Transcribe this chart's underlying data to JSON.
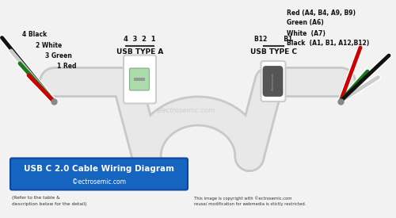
{
  "bg_color": "#f2f2f2",
  "title_box_color": "#1565C0",
  "title_text": "USB C 2.0 Cable Wiring Diagram",
  "subtitle_text": "©ectrosemic.com",
  "title_text_color": "#ffffff",
  "watermark": "electrosemic.com",
  "left_label": "USB TYPE A",
  "right_label": "USB TYPE C",
  "left_pin_row": "4  3  2  1",
  "right_pin_row": "B12        B1",
  "left_wire_labels": [
    "4 Black",
    "2 White",
    "3 Green",
    "1 Red"
  ],
  "right_wire_labels": [
    "Red (A4, B4, A9, B9)",
    "Green (A6)",
    "White  (A7)",
    "Black  (A1, B1, A12,B12)"
  ],
  "wire_colors_left": [
    "#111111",
    "#cccccc",
    "#1a7a1a",
    "#cc0000"
  ],
  "wire_colors_right": [
    "#cc0000",
    "#1a7a1a",
    "#cccccc",
    "#111111"
  ],
  "left_label_colors": [
    "#111111",
    "#555555",
    "#1a7a1a",
    "#cc0000"
  ],
  "right_label_colors": [
    "#cc0000",
    "#1a7a1a",
    "#333333",
    "#111111"
  ],
  "cable_color": "#e8e8e8",
  "cable_shadow": "#c8c8c8",
  "footer_left": "(Refer to the table &\ndescription below for the detail)",
  "footer_right": "This image is copyright with ©ectrosemic.com\nreuse/ modification for webmedia is stictly restricted."
}
